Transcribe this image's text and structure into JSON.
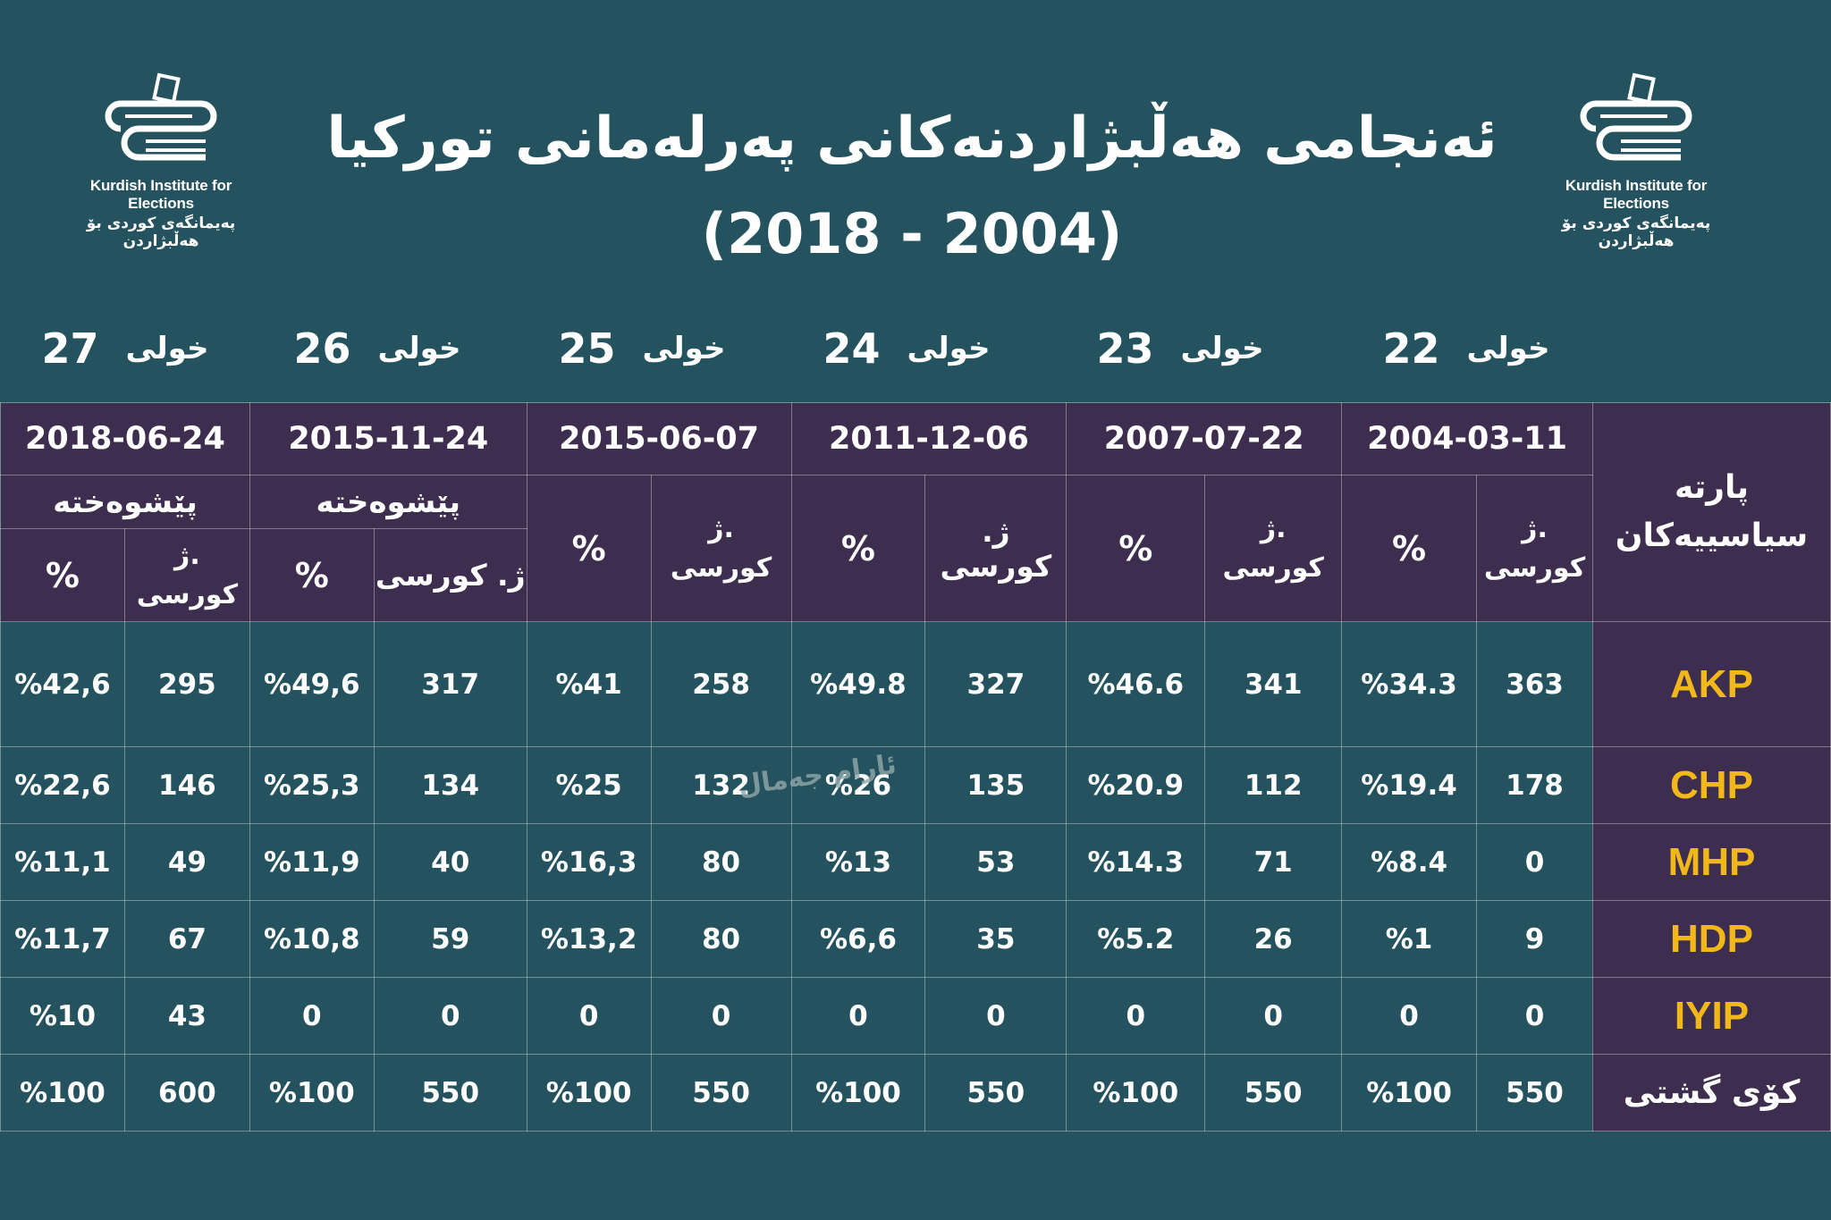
{
  "title": "ئەنجامی هەڵبژاردنەکانی پەرلەمانی تورکیا",
  "years": "(2018  -  2004)",
  "logo": {
    "en": "Kurdish Institute for Elections",
    "ku": "پەیمانگەی کوردی بۆ هەڵبژاردن",
    "badge": "KIE"
  },
  "round_word": "خولی",
  "rounds": [
    {
      "num": "27",
      "date": "2018-06-24",
      "early": "پێشوەختە"
    },
    {
      "num": "26",
      "date": "2015-11-24",
      "early": "پێشوەختە"
    },
    {
      "num": "25",
      "date": "2015-06-07"
    },
    {
      "num": "24",
      "date": "2011-12-06"
    },
    {
      "num": "23",
      "date": "2007-07-22"
    },
    {
      "num": "22",
      "date": "2004-03-11"
    }
  ],
  "header": {
    "pct": "%",
    "seat_abbr": "ژ.",
    "seat_word": "کورسی",
    "seat_inline": "ژ. کورسی",
    "party_line1": "پارتە",
    "party_line2": "سیاسییەکان"
  },
  "parties": [
    {
      "name": "AKP",
      "cells": [
        "%42,6",
        "295",
        "%49,6",
        "317",
        "%41",
        "258",
        "%49.8",
        "327",
        "%46.6",
        "341",
        "%34.3",
        "363"
      ]
    },
    {
      "name": "CHP",
      "cells": [
        "%22,6",
        "146",
        "%25,3",
        "134",
        "%25",
        "132",
        "%26",
        "135",
        "%20.9",
        "112",
        "%19.4",
        "178"
      ]
    },
    {
      "name": "MHP",
      "cells": [
        "%11,1",
        "49",
        "%11,9",
        "40",
        "%16,3",
        "80",
        "%13",
        "53",
        "%14.3",
        "71",
        "%8.4",
        "0"
      ]
    },
    {
      "name": "HDP",
      "cells": [
        "%11,7",
        "67",
        "%10,8",
        "59",
        "%13,2",
        "80",
        "%6,6",
        "35",
        "%5.2",
        "26",
        "%1",
        "9"
      ]
    },
    {
      "name": "IYIP",
      "cells": [
        "%10",
        "43",
        "0",
        "0",
        "0",
        "0",
        "0",
        "0",
        "0",
        "0",
        "0",
        "0"
      ]
    },
    {
      "name": "کۆی گشتی",
      "cells": [
        "%100",
        "600",
        "%100",
        "550",
        "%100",
        "550",
        "%100",
        "550",
        "%100",
        "550",
        "%100",
        "550"
      ]
    }
  ],
  "watermark": "ئارام جەمال",
  "colors": {
    "background": "#24535f",
    "header": "#3d2e4f",
    "party_text": "#f2b81a"
  }
}
